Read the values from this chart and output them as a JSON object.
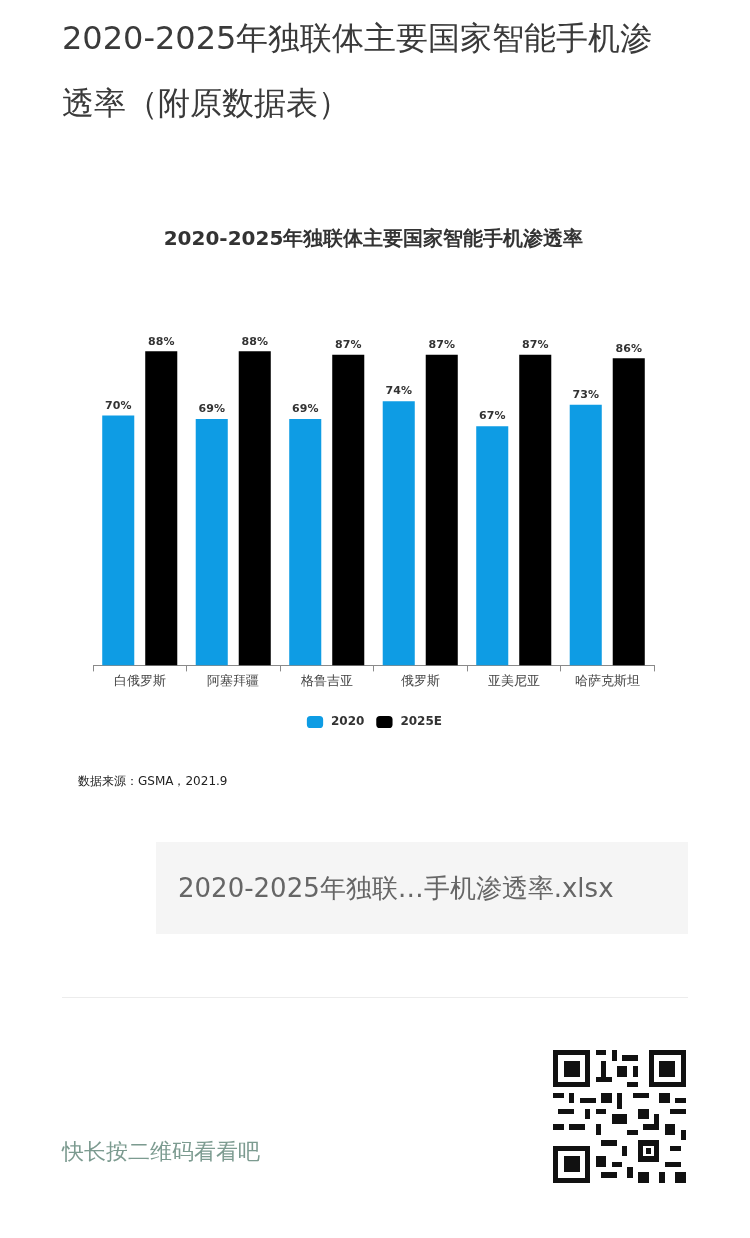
{
  "chart_data": {
    "type": "bar",
    "title": "2020-2025年独联体主要国家智能手机渗透率（附原数据表）",
    "subtitle": "2020-2025年独联体主要国家智能手机渗透率",
    "categories": [
      "白俄罗斯",
      "阿塞拜疆",
      "格鲁吉亚",
      "俄罗斯",
      "亚美尼亚",
      "哈萨克斯坦"
    ],
    "series": [
      {
        "name": "2020",
        "color": "#0e9ce4",
        "values": [
          70,
          69,
          69,
          74,
          67,
          73
        ],
        "value_labels": [
          "70%",
          "69%",
          "69%",
          "74%",
          "67%",
          "73%"
        ]
      },
      {
        "name": "2025E",
        "color": "#000000",
        "values": [
          88,
          88,
          87,
          87,
          87,
          86
        ],
        "value_labels": [
          "88%",
          "88%",
          "87%",
          "87%",
          "87%",
          "86%"
        ]
      }
    ],
    "legend": "bottom",
    "grid": false,
    "annotations": [
      "数据来源：GSMA，2021.9",
      "2020-2025年独联…手机渗透率.xlsx",
      "快长按二维码看看吧"
    ]
  }
}
